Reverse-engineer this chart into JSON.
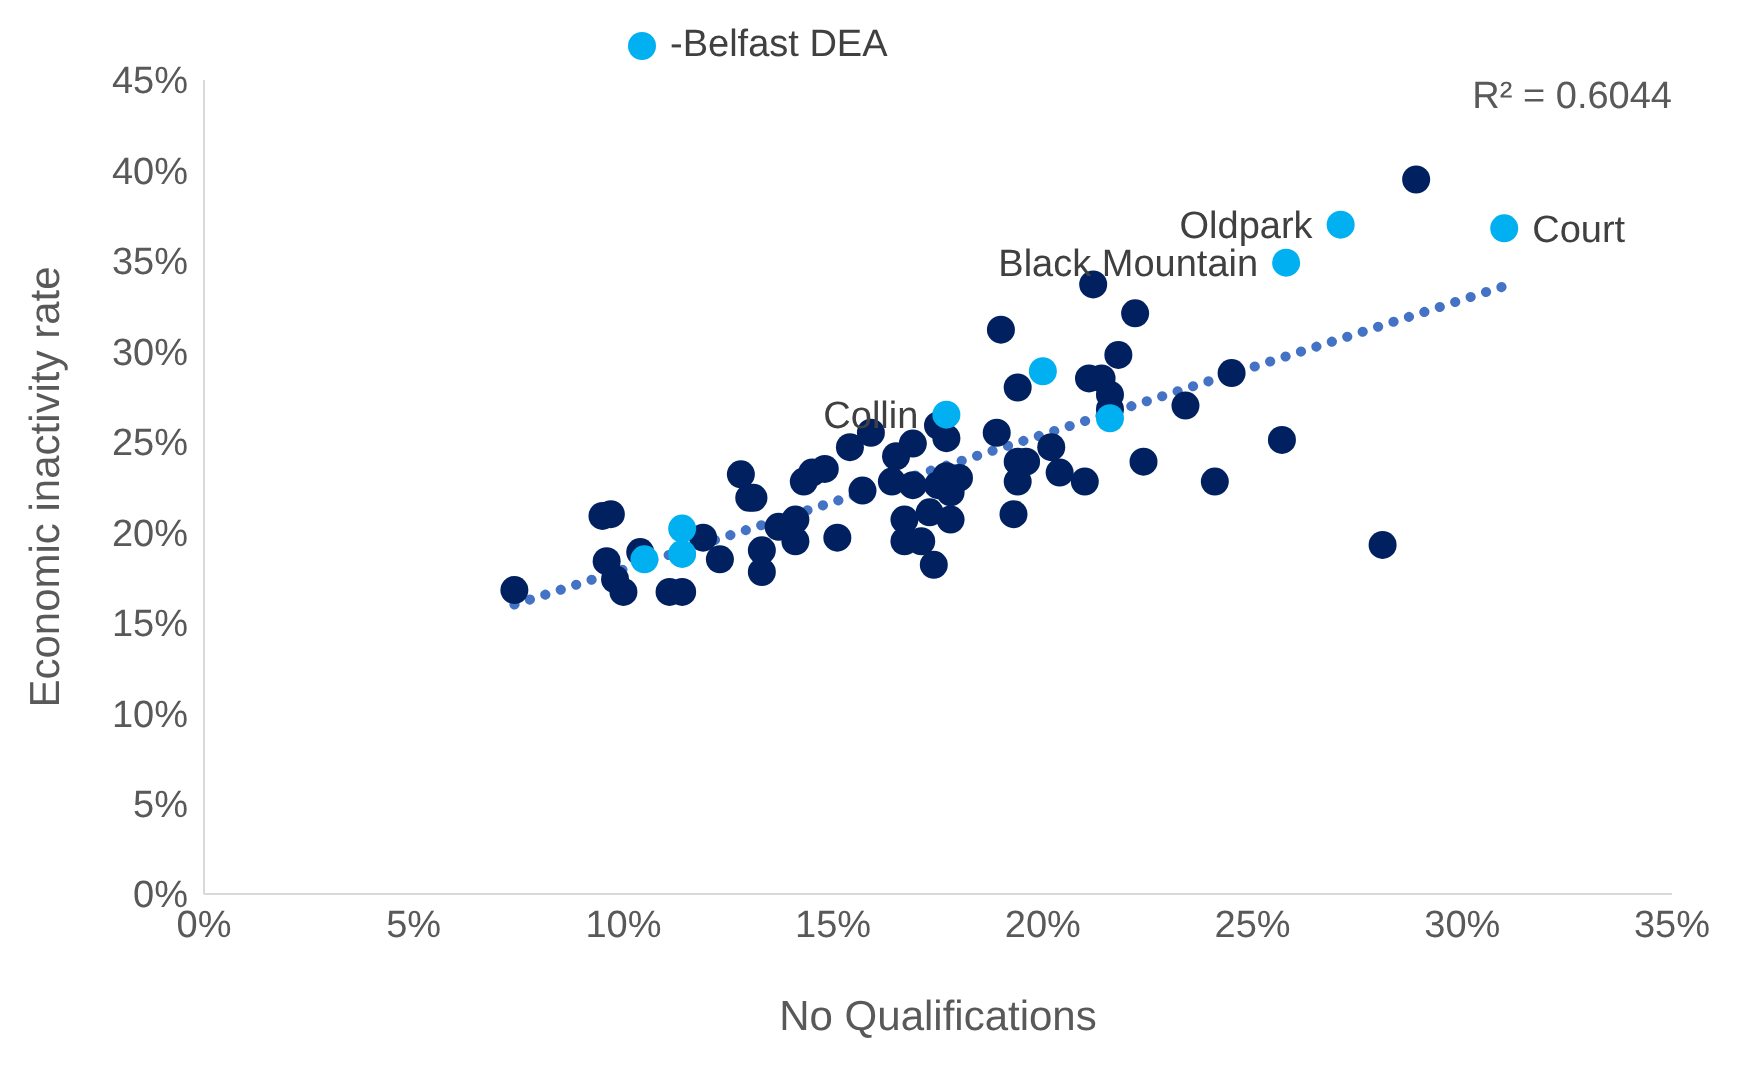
{
  "chart_data": {
    "type": "scatter",
    "xlabel": "No Qualifications",
    "ylabel": "Economic inactivity rate",
    "xlim": [
      0,
      35
    ],
    "ylim": [
      0,
      45
    ],
    "xticks": [
      {
        "value": 0,
        "label": "0%"
      },
      {
        "value": 5,
        "label": "5%"
      },
      {
        "value": 10,
        "label": "10%"
      },
      {
        "value": 15,
        "label": "15%"
      },
      {
        "value": 20,
        "label": "20%"
      },
      {
        "value": 25,
        "label": "25%"
      },
      {
        "value": 30,
        "label": "30%"
      },
      {
        "value": 35,
        "label": "35%"
      }
    ],
    "yticks": [
      {
        "value": 0,
        "label": "0%"
      },
      {
        "value": 5,
        "label": "5%"
      },
      {
        "value": 10,
        "label": "10%"
      },
      {
        "value": 15,
        "label": "15%"
      },
      {
        "value": 20,
        "label": "20%"
      },
      {
        "value": 25,
        "label": "25%"
      },
      {
        "value": 30,
        "label": "30%"
      },
      {
        "value": 35,
        "label": "35%"
      },
      {
        "value": 40,
        "label": "40%"
      },
      {
        "value": 45,
        "label": "45%"
      }
    ],
    "grid": false,
    "legend": "top left",
    "marker": "circle",
    "series": [
      {
        "color": "#002060",
        "x": [
          7.4,
          9.5,
          9.7,
          9.6,
          9.8,
          10.0,
          10.4,
          11.1,
          11.4,
          11.9,
          12.3,
          12.8,
          13.0,
          13.1,
          13.3,
          13.3,
          13.7,
          14.1,
          14.1,
          14.3,
          14.5,
          14.8,
          15.1,
          15.4,
          15.7,
          15.9,
          16.4,
          16.5,
          16.7,
          16.7,
          16.9,
          16.9,
          17.1,
          17.3,
          17.5,
          17.4,
          17.5,
          17.7,
          17.7,
          17.8,
          17.8,
          18.0,
          19.0,
          18.9,
          19.3,
          19.4,
          19.4,
          19.4,
          19.6,
          20.2,
          20.4,
          21.0,
          21.1,
          21.2,
          21.4,
          21.6,
          21.6,
          21.8,
          22.2,
          22.4,
          23.4,
          24.1,
          24.5,
          25.7,
          28.1,
          28.9
        ],
        "values": [
          16.8,
          20.9,
          21.0,
          18.4,
          17.4,
          16.7,
          18.9,
          16.7,
          16.7,
          19.7,
          18.5,
          23.2,
          21.9,
          21.9,
          19.0,
          17.8,
          20.3,
          20.7,
          19.5,
          22.8,
          23.3,
          23.5,
          19.7,
          24.7,
          22.3,
          25.5,
          22.8,
          24.2,
          20.7,
          19.5,
          24.9,
          22.6,
          19.5,
          21.1,
          22.6,
          18.2,
          25.9,
          25.2,
          23.1,
          20.7,
          22.2,
          23.0,
          31.2,
          25.5,
          21.0,
          23.9,
          22.8,
          28.0,
          23.9,
          24.7,
          23.3,
          22.8,
          28.5,
          33.7,
          28.5,
          27.6,
          26.8,
          29.8,
          32.1,
          23.9,
          27.0,
          22.8,
          28.8,
          25.1,
          19.3,
          39.5
        ]
      },
      {
        "name": "-Belfast DEA",
        "color": "#00b0f0",
        "x": [
          11.4,
          11.4,
          10.5,
          17.7,
          20.0,
          21.6,
          25.8,
          27.1,
          31.0
        ],
        "values": [
          20.2,
          18.8,
          18.5,
          26.5,
          28.9,
          26.3,
          34.9,
          37.0,
          36.8
        ]
      },
      {
        "type": "line",
        "line_style": "dotted",
        "marker": "none",
        "color": "#4472c4",
        "x": [
          7.4,
          31.0
        ],
        "values": [
          16.0,
          33.6
        ]
      }
    ],
    "annotations": [
      {
        "text": "Collin",
        "x": 17.7,
        "y": 26.5
      },
      {
        "text": "Black Mountain",
        "x": 25.8,
        "y": 34.9
      },
      {
        "text": "Oldpark",
        "x": 27.1,
        "y": 37.0
      },
      {
        "text": "Court",
        "x": 31.0,
        "y": 36.8
      },
      "R² = 0.6044"
    ]
  }
}
